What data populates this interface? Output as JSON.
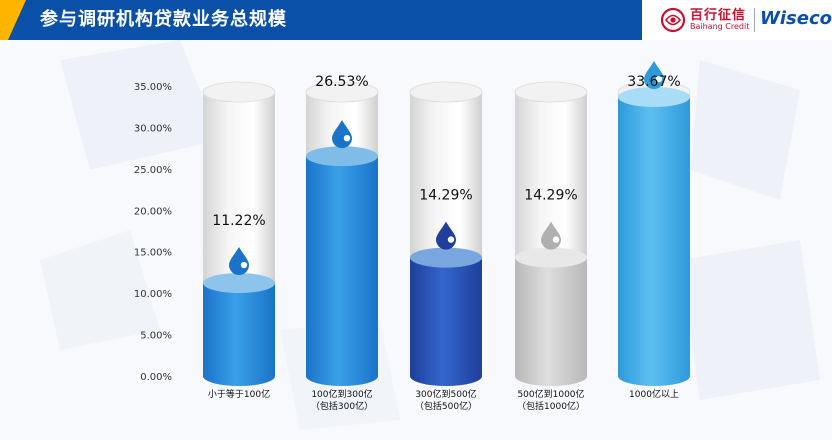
{
  "header": {
    "title": "参与调研机构贷款业务总规模",
    "brand_cn": "百行征信",
    "brand_en": "Baihang Credit",
    "brand_partner": "Wiseco"
  },
  "colors": {
    "header": "#0a4fa8",
    "accent": "#ffb400",
    "brand_red": "#c8102e"
  },
  "chart_data": {
    "type": "bar",
    "title": "",
    "xlabel": "",
    "ylabel": "",
    "ylim": [
      0,
      35
    ],
    "y_tick_labels": [
      "0.00%",
      "5.00%",
      "10.00%",
      "15.00%",
      "20.00%",
      "25.00%",
      "30.00%",
      "35.00%"
    ],
    "grid": false,
    "legend": "none",
    "categories": [
      [
        "小于等于100亿"
      ],
      [
        "100亿到300亿",
        "（包括300亿）"
      ],
      [
        "300亿到500亿",
        "（包括500亿）"
      ],
      [
        "500亿到1000亿",
        "（包括1000亿）"
      ],
      [
        "1000亿以上"
      ]
    ],
    "values": [
      11.22,
      26.53,
      14.29,
      14.29,
      33.67
    ],
    "value_labels": [
      "11.22%",
      "26.53%",
      "14.29%",
      "14.29%",
      "33.67%"
    ],
    "bar_colors": [
      {
        "top": "#8cc4ec",
        "side": "#1a73c8",
        "mid": "#3aa0e8",
        "drop": "#1a73c8"
      },
      {
        "top": "#7fbde8",
        "side": "#1a73c8",
        "mid": "#3aa0e8",
        "drop": "#1a73c8"
      },
      {
        "top": "#7aa6e0",
        "side": "#1f3f9a",
        "mid": "#3366cc",
        "drop": "#1f3f9a"
      },
      {
        "top": "#e8e8e8",
        "side": "#b8b8b8",
        "mid": "#dedede",
        "drop": "#b0b0b0"
      },
      {
        "top": "#a9dcf7",
        "side": "#2e9ad8",
        "mid": "#5cc0f2",
        "drop": "#2e9ad8"
      }
    ]
  }
}
